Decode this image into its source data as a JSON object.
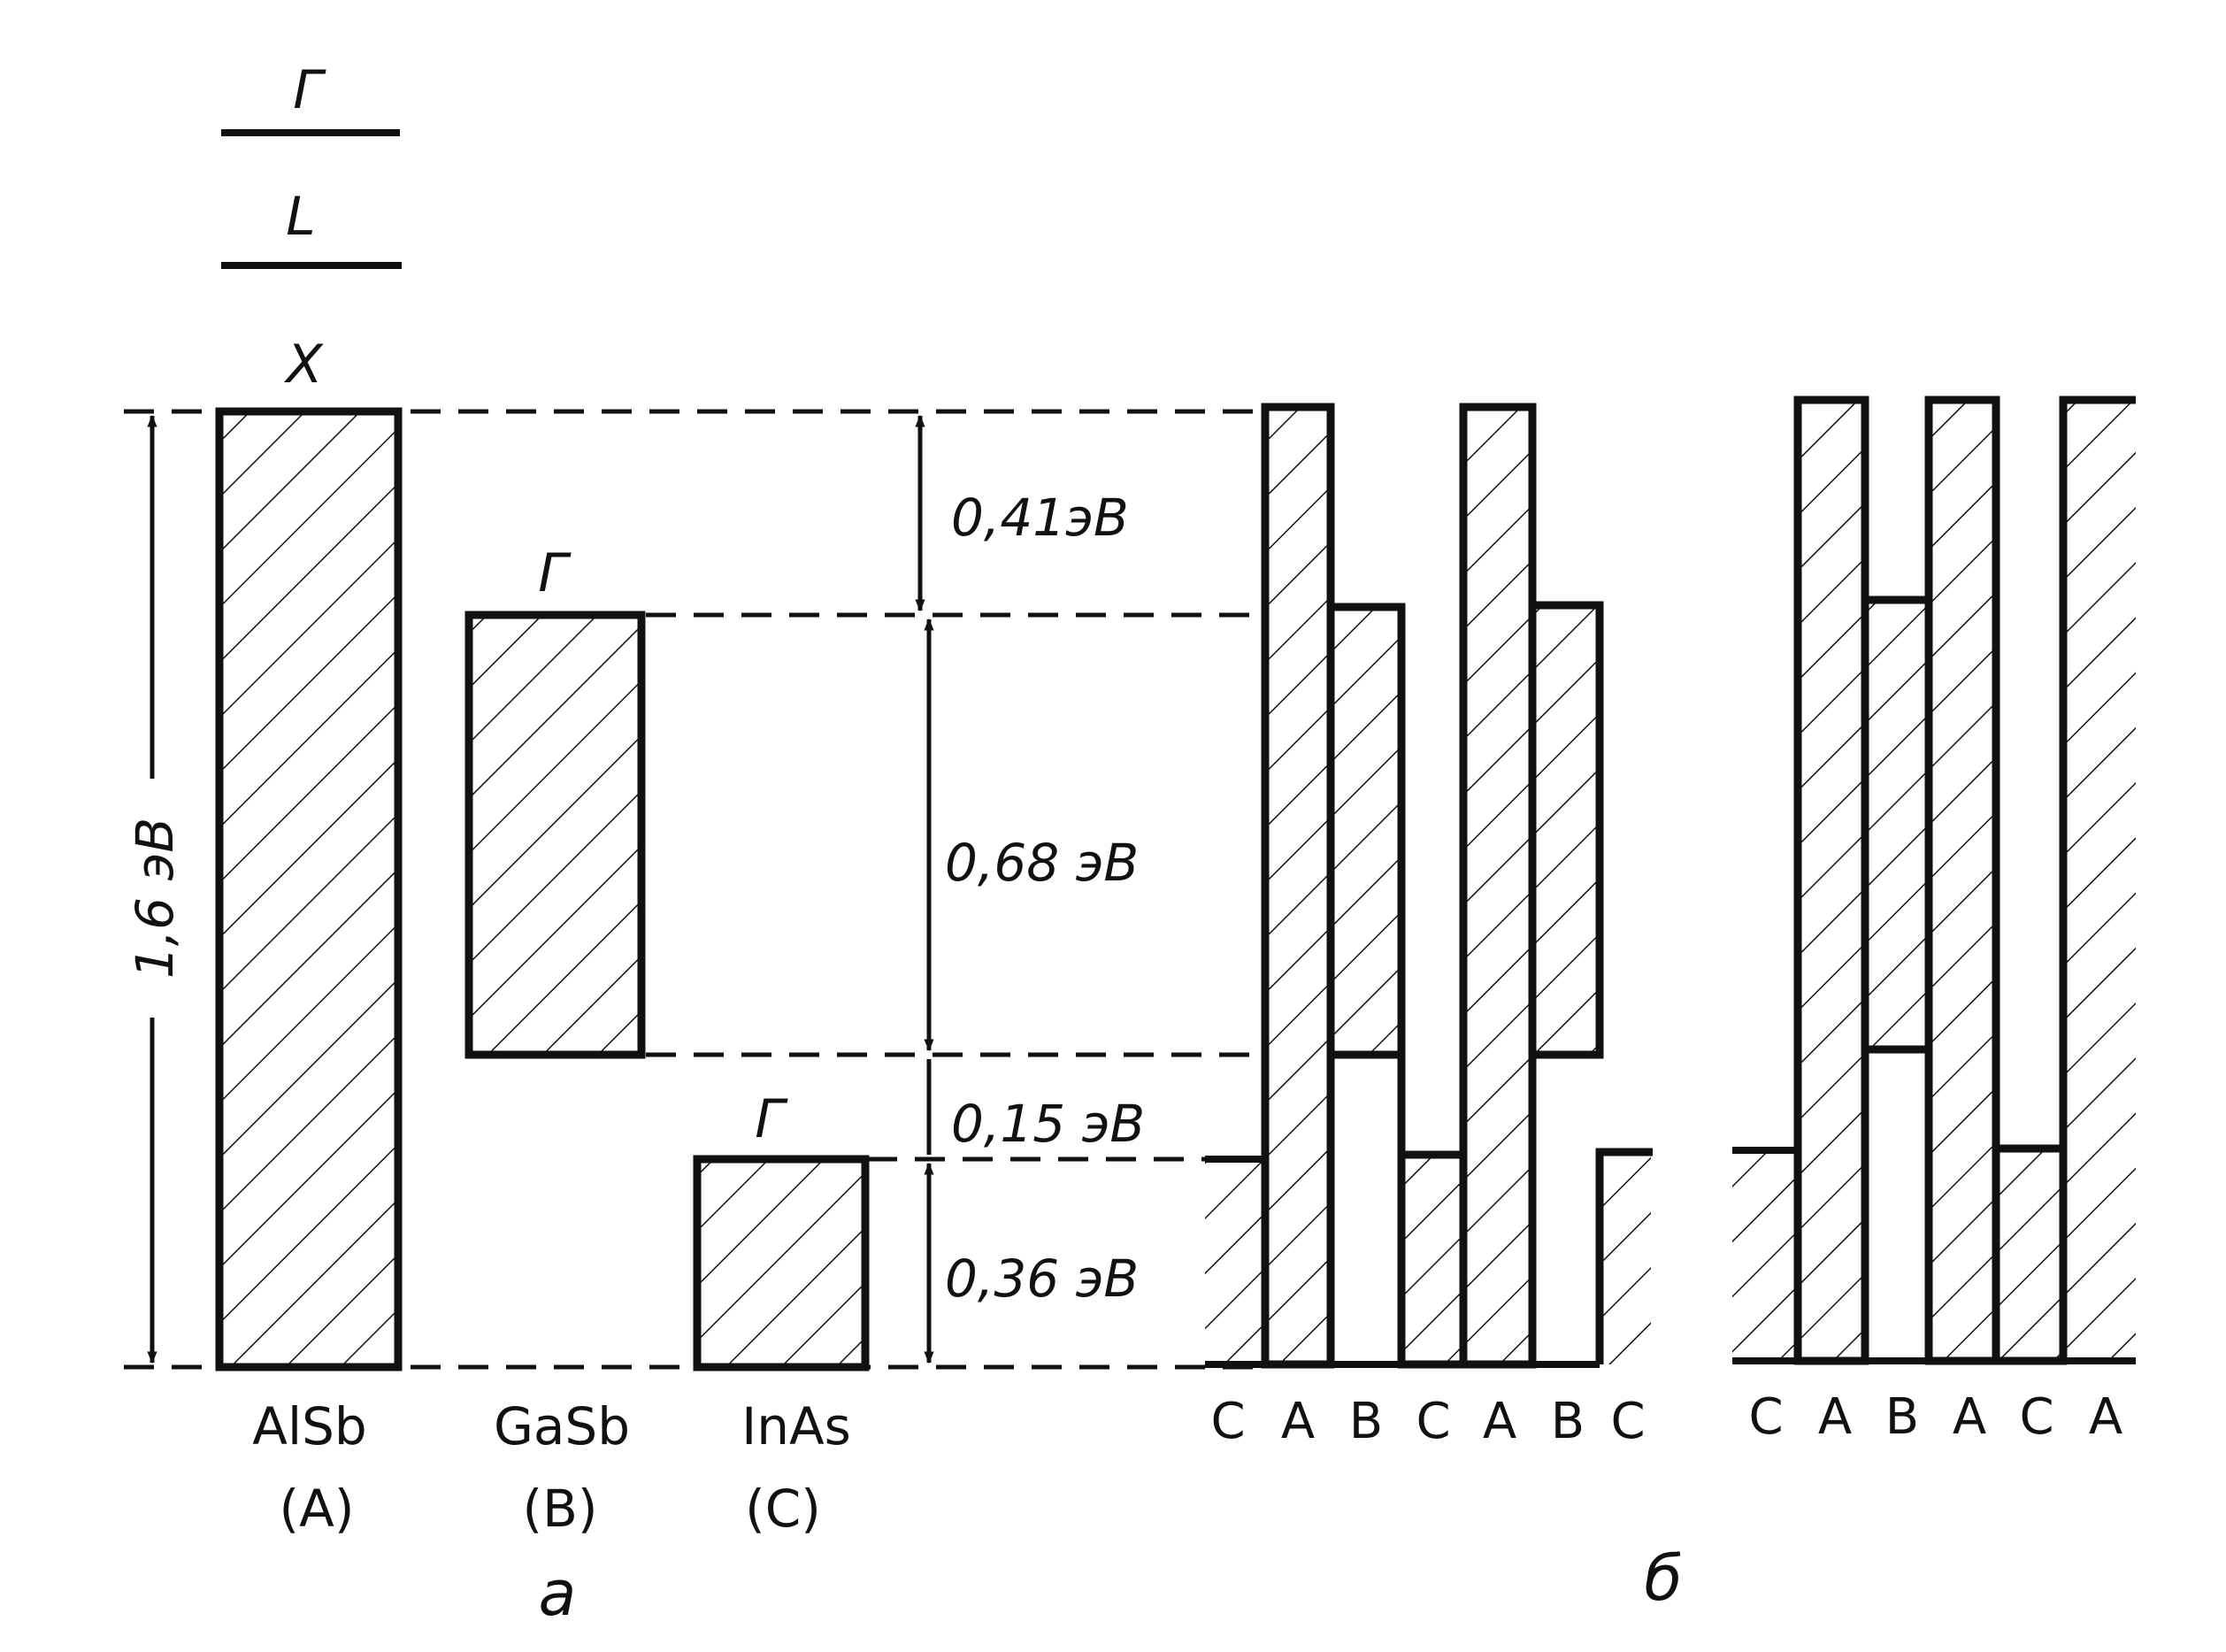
{
  "levels_legend": [
    {
      "id": "gamma",
      "label": "Γ"
    },
    {
      "id": "l",
      "label": "L"
    },
    {
      "id": "x",
      "label": "X"
    }
  ],
  "energy_labels": {
    "total": "1,6 эВ",
    "gap_alsb_gasb": "0,41эВ",
    "gap_gasb": "0,68 эВ",
    "offset_gasb_inas": "0,15 эВ",
    "gap_inas": "0,36 эВ"
  },
  "bands": {
    "gasb_gamma": "Γ",
    "inas_gamma": "Γ"
  },
  "materials": [
    {
      "formula": "AlSb",
      "letter": "(A)"
    },
    {
      "formula": "GaSb",
      "letter": "(B)"
    },
    {
      "formula": "InAs",
      "letter": "(C)"
    }
  ],
  "sequence_1": [
    "C",
    "A",
    "B",
    "C",
    "A",
    "B",
    "C"
  ],
  "sequence_2": [
    "C",
    "A",
    "B",
    "A",
    "C",
    "A"
  ],
  "panel_labels": {
    "a": "а",
    "b": "б"
  },
  "colors": {
    "ink": "#111111",
    "paper": "#ffffff"
  }
}
